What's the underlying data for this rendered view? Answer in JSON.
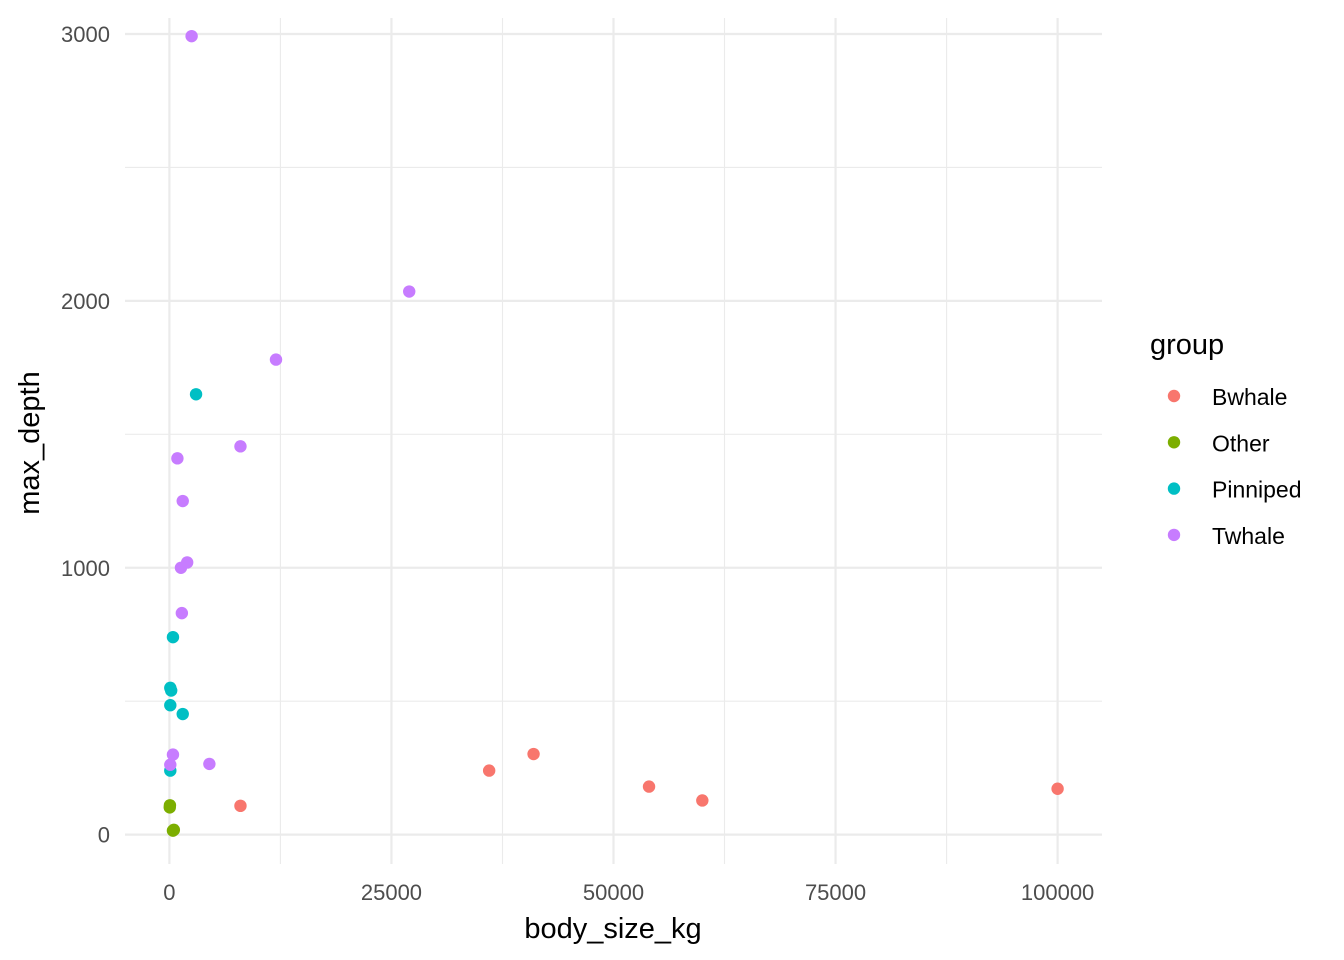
{
  "chart_data": {
    "type": "scatter",
    "xlabel": "body_size_kg",
    "ylabel": "max_depth",
    "xlim": [
      -5000,
      105000
    ],
    "ylim": [
      -110,
      3060
    ],
    "x_ticks": [
      0,
      25000,
      50000,
      75000,
      100000
    ],
    "x_tick_labels": [
      "0",
      "25000",
      "50000",
      "75000",
      "100000"
    ],
    "x_minor_ticks": [
      12500,
      37500,
      62500,
      87500
    ],
    "y_ticks": [
      0,
      1000,
      2000,
      3000
    ],
    "y_tick_labels": [
      "0",
      "1000",
      "2000",
      "3000"
    ],
    "y_minor_ticks": [
      500,
      1500,
      2500
    ],
    "grid": true,
    "legend": {
      "title": "group",
      "position": "right"
    },
    "series": [
      {
        "name": "Bwhale",
        "color": "#F8766D",
        "points": [
          {
            "x": 8000,
            "y": 108
          },
          {
            "x": 36000,
            "y": 240
          },
          {
            "x": 41000,
            "y": 302
          },
          {
            "x": 54000,
            "y": 180
          },
          {
            "x": 60000,
            "y": 128
          },
          {
            "x": 100000,
            "y": 172
          }
        ]
      },
      {
        "name": "Other",
        "color": "#7CAE00",
        "points": [
          {
            "x": 40,
            "y": 102
          },
          {
            "x": 60,
            "y": 110
          },
          {
            "x": 400,
            "y": 15
          },
          {
            "x": 500,
            "y": 18
          }
        ]
      },
      {
        "name": "Pinniped",
        "color": "#00BFC4",
        "points": [
          {
            "x": 3000,
            "y": 1650
          },
          {
            "x": 400,
            "y": 740
          },
          {
            "x": 100,
            "y": 550
          },
          {
            "x": 200,
            "y": 540
          },
          {
            "x": 100,
            "y": 485
          },
          {
            "x": 1500,
            "y": 452
          },
          {
            "x": 100,
            "y": 240
          }
        ]
      },
      {
        "name": "Twhale",
        "color": "#C77CFF",
        "points": [
          {
            "x": 2500,
            "y": 2992
          },
          {
            "x": 27000,
            "y": 2035
          },
          {
            "x": 12000,
            "y": 1780
          },
          {
            "x": 8000,
            "y": 1455
          },
          {
            "x": 900,
            "y": 1410
          },
          {
            "x": 1500,
            "y": 1250
          },
          {
            "x": 2000,
            "y": 1020
          },
          {
            "x": 1300,
            "y": 1000
          },
          {
            "x": 1400,
            "y": 830
          },
          {
            "x": 400,
            "y": 300
          },
          {
            "x": 4500,
            "y": 265
          },
          {
            "x": 100,
            "y": 262
          }
        ]
      }
    ]
  }
}
